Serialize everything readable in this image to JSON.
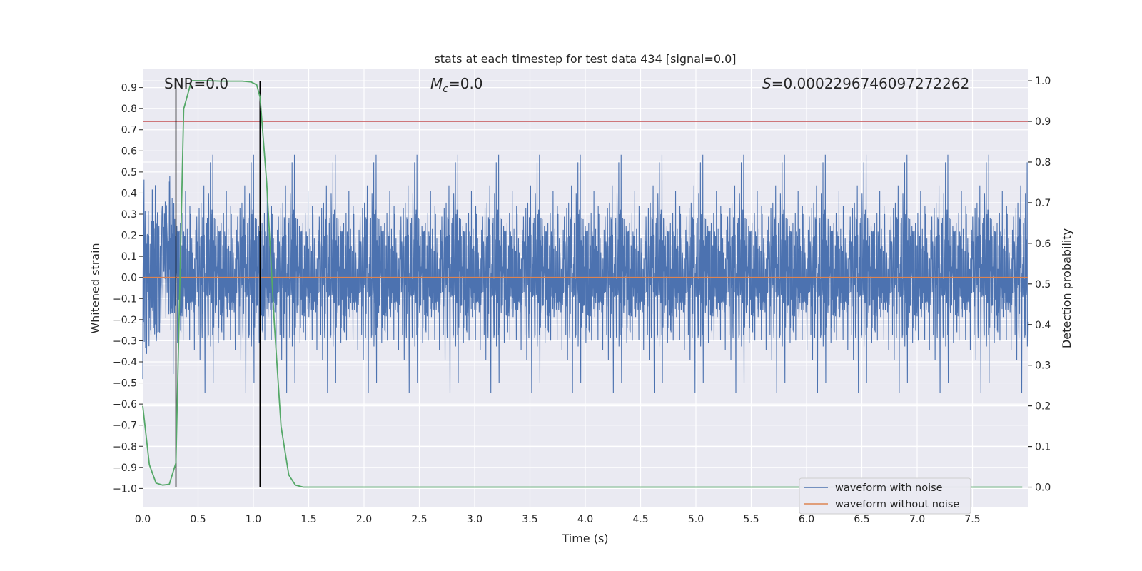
{
  "chart_data": {
    "type": "line",
    "title": "stats at each timestep for test data 434 [signal=0.0]",
    "xlabel": "Time (s)",
    "ylabel": "Whitened strain",
    "ylabel_right": "Detection probability",
    "xlim": [
      0.0,
      8.0
    ],
    "ylim": [
      -1.09,
      0.99
    ],
    "ylim_right": [
      -0.05,
      1.03
    ],
    "x_ticks": [
      "0.0",
      "0.5",
      "1.0",
      "1.5",
      "2.0",
      "2.5",
      "3.0",
      "3.5",
      "4.0",
      "4.5",
      "5.0",
      "5.5",
      "6.0",
      "6.5",
      "7.0",
      "7.5"
    ],
    "y_ticks": [
      "0.9",
      "0.8",
      "0.7",
      "0.6",
      "0.5",
      "0.4",
      "0.3",
      "0.2",
      "0.1",
      "0.0",
      "−0.1",
      "−0.2",
      "−0.3",
      "−0.4",
      "−0.5",
      "−0.6",
      "−0.7",
      "−0.8",
      "−0.9",
      "−1.0"
    ],
    "y_ticks_right": [
      "1.0",
      "0.9",
      "0.8",
      "0.7",
      "0.6",
      "0.5",
      "0.4",
      "0.3",
      "0.2",
      "0.1",
      "0.0"
    ],
    "grid": true,
    "legend_position": "lower-right",
    "annotations": {
      "snr": "SNR=0.0",
      "mc_symbol": "M",
      "mc_sub": "c",
      "mc_value": "=0.0",
      "s_symbol": "S",
      "s_value": "=0.0002296746097272262"
    },
    "threshold_right": 0.9,
    "vlines_x": [
      0.3,
      1.06
    ],
    "series": [
      {
        "name": "waveform with noise",
        "color": "#4c72b0",
        "axis": "left",
        "description": "noise",
        "sample_rate": 512,
        "amplitude_std": 0.2
      },
      {
        "name": "waveform without noise",
        "color": "#dd8452",
        "axis": "left",
        "x": [
          0.0,
          8.0
        ],
        "y": [
          0.0,
          0.0
        ]
      },
      {
        "name": "",
        "color": "#55a868",
        "axis": "right",
        "x": [
          0.0,
          0.06,
          0.12,
          0.18,
          0.24,
          0.3,
          0.37,
          0.44,
          0.5,
          0.6,
          0.7,
          0.8,
          0.9,
          0.98,
          1.03,
          1.06,
          1.12,
          1.19,
          1.25,
          1.32,
          1.38,
          1.45,
          1.55,
          2.0,
          3.0,
          4.0,
          5.0,
          6.0,
          7.0,
          7.95
        ],
        "y": [
          0.2,
          0.055,
          0.01,
          0.005,
          0.007,
          0.06,
          0.93,
          1.0,
          1.0,
          1.0,
          0.999,
          0.999,
          0.999,
          0.997,
          0.99,
          0.96,
          0.75,
          0.4,
          0.15,
          0.03,
          0.005,
          0.0,
          0.0,
          0.0,
          0.0,
          0.0,
          0.0,
          0.0,
          0.0,
          0.0
        ]
      }
    ]
  }
}
